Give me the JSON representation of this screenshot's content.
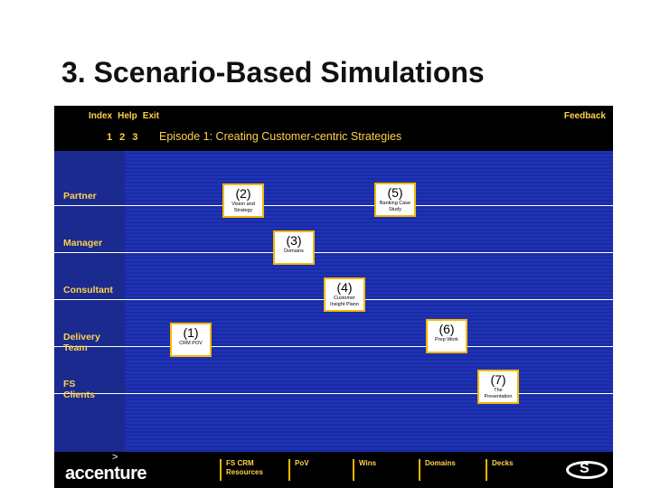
{
  "slide": {
    "title": "3. Scenario-Based Simulations"
  },
  "app": {
    "menu": [
      "Index",
      "Help",
      "Exit"
    ],
    "feedback": "Feedback",
    "pages": [
      "1",
      "2",
      "3"
    ],
    "episode_title": "Episode 1: Creating Customer-centric Strategies",
    "roles": {
      "partner": "Partner",
      "manager": "Manager",
      "consultant": "Consultant",
      "delivery_team": "Delivery Team",
      "fs_clients": "FS Clients"
    },
    "cards": {
      "c1": {
        "num": "(1)",
        "label": "CRM POV"
      },
      "c2": {
        "num": "(2)",
        "label": "Vision and Strategy"
      },
      "c3": {
        "num": "(3)",
        "label": "Domains"
      },
      "c4": {
        "num": "(4)",
        "label": "Customer Insight Plann"
      },
      "c5": {
        "num": "(5)",
        "label": "Banking Case Study"
      },
      "c6": {
        "num": "(6)",
        "label": "Prep Work"
      },
      "c7": {
        "num": "(7)",
        "label": "The Presentation"
      }
    },
    "bottom": {
      "logo": "accenture",
      "logo_mark": ">",
      "nav": {
        "fs_crm": "FS CRM Resources",
        "pov": "PoV",
        "wins": "Wins",
        "domains": "Domains",
        "decks": "Decks"
      },
      "s_logo": "S"
    }
  }
}
